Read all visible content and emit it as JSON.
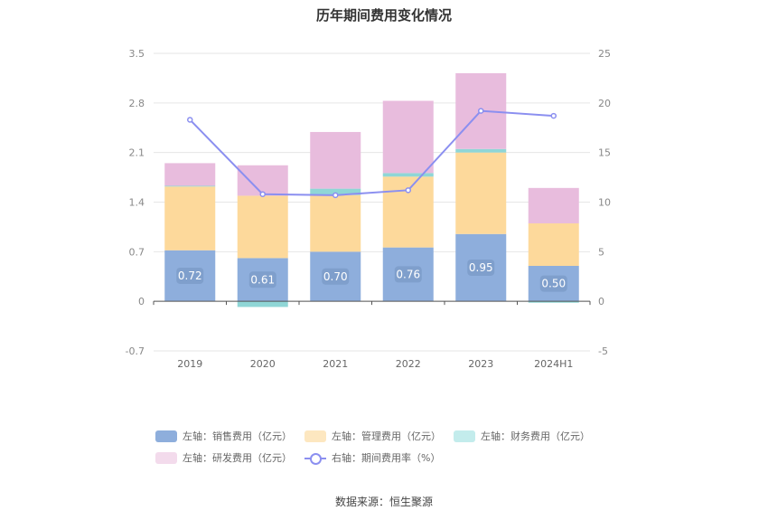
{
  "title": "历年期间费用变化情况",
  "source": "数据来源：恒生聚源",
  "chart_data": {
    "type": "bar",
    "stacked": true,
    "title": "历年期间费用变化情况",
    "categories": [
      "2019",
      "2020",
      "2021",
      "2022",
      "2023",
      "2024H1"
    ],
    "left_axis": {
      "min": -0.7,
      "max": 3.5,
      "ticks": [
        "-0.7",
        "0",
        "0.7",
        "1.4",
        "2.1",
        "2.8",
        "3.5"
      ]
    },
    "right_axis": {
      "min": -5,
      "max": 25,
      "ticks": [
        "-5",
        "0",
        "5",
        "10",
        "15",
        "20",
        "25"
      ]
    },
    "series": [
      {
        "name": "左轴：销售费用（亿元）",
        "axis": "left",
        "color": "#8eaedc",
        "values": [
          0.72,
          0.61,
          0.7,
          0.76,
          0.95,
          0.5
        ],
        "labels": [
          "0.72",
          "0.61",
          "0.70",
          "0.76",
          "0.95",
          "0.50"
        ]
      },
      {
        "name": "左轴：管理费用（亿元）",
        "axis": "left",
        "color": "#fdd99b",
        "values": [
          0.9,
          0.88,
          0.8,
          1.0,
          1.15,
          0.6
        ]
      },
      {
        "name": "左轴：财务费用（亿元）",
        "axis": "left",
        "color": "#8fd6d6",
        "values": [
          0.01,
          -0.08,
          0.09,
          0.05,
          0.05,
          -0.02
        ]
      },
      {
        "name": "左轴：研发费用（亿元）",
        "axis": "left",
        "color": "#e8bcdd",
        "values": [
          0.32,
          0.43,
          0.8,
          1.02,
          1.07,
          0.5
        ]
      },
      {
        "name": "右轴：期间费用率（%）",
        "axis": "right",
        "type": "line",
        "color": "#8b8ff0",
        "values": [
          18.3,
          10.8,
          10.7,
          11.2,
          19.2,
          18.7
        ]
      }
    ],
    "legend_position": "bottom",
    "grid": true
  },
  "legend": {
    "row1": [
      "左轴：销售费用（亿元）",
      "左轴：管理费用（亿元）",
      "左轴：财务费用（亿元）"
    ],
    "row2": [
      "左轴：研发费用（亿元）",
      "右轴：期间费用率（%）"
    ]
  }
}
